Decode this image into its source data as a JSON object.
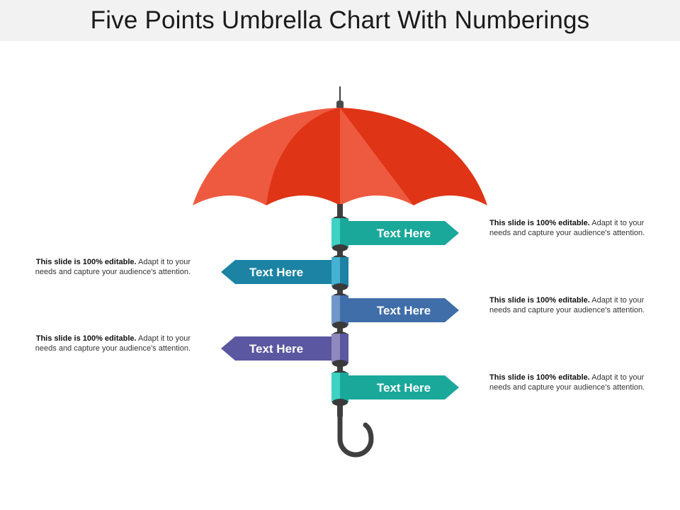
{
  "title": "Five Points Umbrella Chart With Numberings",
  "colors": {
    "canopy_light": "#ee5a40",
    "canopy_dark": "#e03416",
    "handle": "#3f3f3f",
    "teal": "#1aa89a",
    "teal_light": "#3fd1c4",
    "blue": "#1c83a5",
    "blue_light": "#45b2d1",
    "steel": "#3f6ea9",
    "steel_light": "#7197c8",
    "purple": "#5b57a0",
    "purple_light": "#8f89c0",
    "cap": "#3a3a3a"
  },
  "points": [
    {
      "label": "Text Here",
      "side": "right",
      "color": "teal",
      "lead": "This slide is 100% editable.",
      "body": " Adapt it to your needs and capture your audience's attention."
    },
    {
      "label": "Text Here",
      "side": "left",
      "color": "blue",
      "lead": "This slide is 100% editable.",
      "body": " Adapt it to your needs and capture your audience's attention."
    },
    {
      "label": "Text Here",
      "side": "right",
      "color": "steel",
      "lead": "This slide is 100% editable.",
      "body": " Adapt it to your needs and capture your audience's attention."
    },
    {
      "label": "Text Here",
      "side": "left",
      "color": "purple",
      "lead": "This slide is 100% editable.",
      "body": " Adapt it to your needs and capture your audience's attention."
    },
    {
      "label": "Text Here",
      "side": "right",
      "color": "teal",
      "lead": "This slide is 100% editable.",
      "body": " Adapt it to your needs and capture your audience's attention."
    }
  ]
}
